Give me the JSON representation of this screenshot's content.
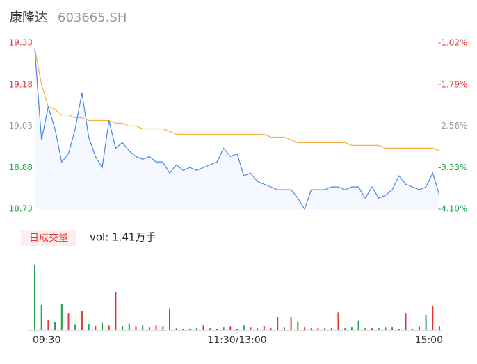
{
  "chart_data": [
    {
      "type": "line",
      "title": "康隆达",
      "subtitle": "603665.SH",
      "x": [
        0,
        4,
        8,
        12,
        16,
        20,
        24,
        28,
        32,
        36,
        40,
        44,
        48,
        52,
        56,
        60,
        64,
        68,
        72,
        76,
        80,
        84,
        88,
        92,
        96,
        100,
        104,
        108,
        112,
        116,
        120,
        124,
        128,
        132,
        136,
        140,
        144,
        148,
        152,
        156,
        160,
        164,
        168,
        172,
        176,
        180,
        184,
        188,
        192,
        196,
        200,
        204,
        208,
        212,
        216,
        220,
        224,
        228,
        232,
        236,
        240
      ],
      "xlim": [
        0,
        240
      ],
      "series": [
        {
          "color": "#4a86e8",
          "values": [
            19.31,
            18.98,
            19.1,
            19.02,
            18.9,
            18.93,
            19.02,
            19.15,
            18.99,
            18.92,
            18.88,
            19.05,
            18.95,
            18.97,
            18.94,
            18.92,
            18.91,
            18.92,
            18.9,
            18.9,
            18.86,
            18.89,
            18.87,
            18.88,
            18.87,
            18.88,
            18.89,
            18.9,
            18.95,
            18.92,
            18.93,
            18.85,
            18.86,
            18.83,
            18.82,
            18.81,
            18.8,
            18.8,
            18.8,
            18.77,
            18.73,
            18.8,
            18.8,
            18.8,
            18.81,
            18.81,
            18.8,
            18.81,
            18.81,
            18.77,
            18.81,
            18.77,
            18.78,
            18.8,
            18.85,
            18.82,
            18.81,
            18.8,
            18.81,
            18.86,
            18.78
          ]
        },
        {
          "color": "#f5b041",
          "values": [
            19.31,
            19.18,
            19.1,
            19.09,
            19.07,
            19.07,
            19.06,
            19.06,
            19.05,
            19.05,
            19.05,
            19.05,
            19.04,
            19.04,
            19.03,
            19.03,
            19.02,
            19.02,
            19.02,
            19.02,
            19.01,
            19.0,
            19.0,
            19.0,
            19.0,
            19.0,
            19.0,
            19.0,
            19.0,
            19.0,
            19.0,
            19.0,
            19.0,
            19.0,
            19.0,
            18.99,
            18.99,
            18.99,
            18.98,
            18.97,
            18.97,
            18.97,
            18.97,
            18.97,
            18.97,
            18.97,
            18.97,
            18.96,
            18.96,
            18.96,
            18.96,
            18.96,
            18.95,
            18.95,
            18.95,
            18.95,
            18.95,
            18.95,
            18.95,
            18.95,
            18.94
          ]
        }
      ],
      "area_color": "#f5f8fe",
      "ylim": [
        18.73,
        19.33
      ],
      "yticks": [
        19.33,
        19.18,
        19.03,
        18.88,
        18.73
      ],
      "ytick_colors": [
        "#e63434",
        "#e63434",
        "#999999",
        "#1aa34a",
        "#1aa34a"
      ],
      "y2lim": [
        -4.1,
        -1.02
      ],
      "y2ticks": [
        {
          "value": -1.02,
          "label": "-1.02%"
        },
        {
          "value": -1.79,
          "label": "-1.79%"
        },
        {
          "value": -2.56,
          "label": "-2.56%"
        },
        {
          "value": -3.33,
          "label": "-3.33%"
        },
        {
          "value": -4.1,
          "label": "-4.10%"
        }
      ],
      "y2tick_colors": [
        "#e63434",
        "#e63434",
        "#999999",
        "#1aa34a",
        "#1aa34a"
      ]
    },
    {
      "type": "bar",
      "title": "日成交量",
      "subtitle": "vol: 1.41万手",
      "x": [
        0,
        4,
        8,
        12,
        16,
        20,
        24,
        28,
        32,
        36,
        40,
        44,
        48,
        52,
        56,
        60,
        64,
        68,
        72,
        76,
        80,
        84,
        88,
        92,
        96,
        100,
        104,
        108,
        112,
        116,
        120,
        124,
        128,
        132,
        136,
        140,
        144,
        148,
        152,
        156,
        160,
        164,
        168,
        172,
        176,
        180,
        184,
        188,
        192,
        196,
        200,
        204,
        208,
        212,
        216,
        220,
        224,
        228,
        232,
        236,
        240
      ],
      "xlim": [
        0,
        240
      ],
      "xticks": [
        {
          "value": 0,
          "label": "09:30"
        },
        {
          "value": 120,
          "label": "11:30/13:00"
        },
        {
          "value": 240,
          "label": "15:00"
        }
      ],
      "values": [
        990,
        380,
        150,
        120,
        400,
        250,
        80,
        290,
        90,
        60,
        110,
        70,
        570,
        60,
        100,
        50,
        70,
        40,
        70,
        50,
        320,
        30,
        20,
        20,
        30,
        70,
        30,
        20,
        40,
        50,
        20,
        70,
        40,
        30,
        60,
        30,
        200,
        40,
        190,
        130,
        40,
        30,
        30,
        30,
        30,
        270,
        30,
        40,
        140,
        30,
        30,
        30,
        40,
        40,
        20,
        250,
        20,
        50,
        230,
        360,
        50
      ],
      "colors": [
        "#1aa34a",
        "#1aa34a",
        "#e63434",
        "#1aa34a",
        "#1aa34a",
        "#e63434",
        "#1aa34a",
        "#e63434",
        "#1aa34a",
        "#e63434",
        "#1aa34a",
        "#e63434",
        "#e63434",
        "#1aa34a",
        "#1aa34a",
        "#e63434",
        "#1aa34a",
        "#e63434",
        "#e63434",
        "#1aa34a",
        "#e63434",
        "#1aa34a",
        "#e63434",
        "#e63434",
        "#1aa34a",
        "#e63434",
        "#1aa34a",
        "#e63434",
        "#1aa34a",
        "#e63434",
        "#1aa34a",
        "#1aa34a",
        "#e63434",
        "#1aa34a",
        "#e63434",
        "#e63434",
        "#e63434",
        "#1aa34a",
        "#e63434",
        "#1aa34a",
        "#e63434",
        "#1aa34a",
        "#e63434",
        "#1aa34a",
        "#e63434",
        "#e63434",
        "#1aa34a",
        "#1aa34a",
        "#1aa34a",
        "#1aa34a",
        "#e63434",
        "#1aa34a",
        "#e63434",
        "#1aa34a",
        "#e63434",
        "#e63434",
        "#e63434",
        "#1aa34a",
        "#1aa34a",
        "#e63434",
        "#e63434"
      ],
      "ylim": [
        0,
        1000
      ]
    }
  ]
}
